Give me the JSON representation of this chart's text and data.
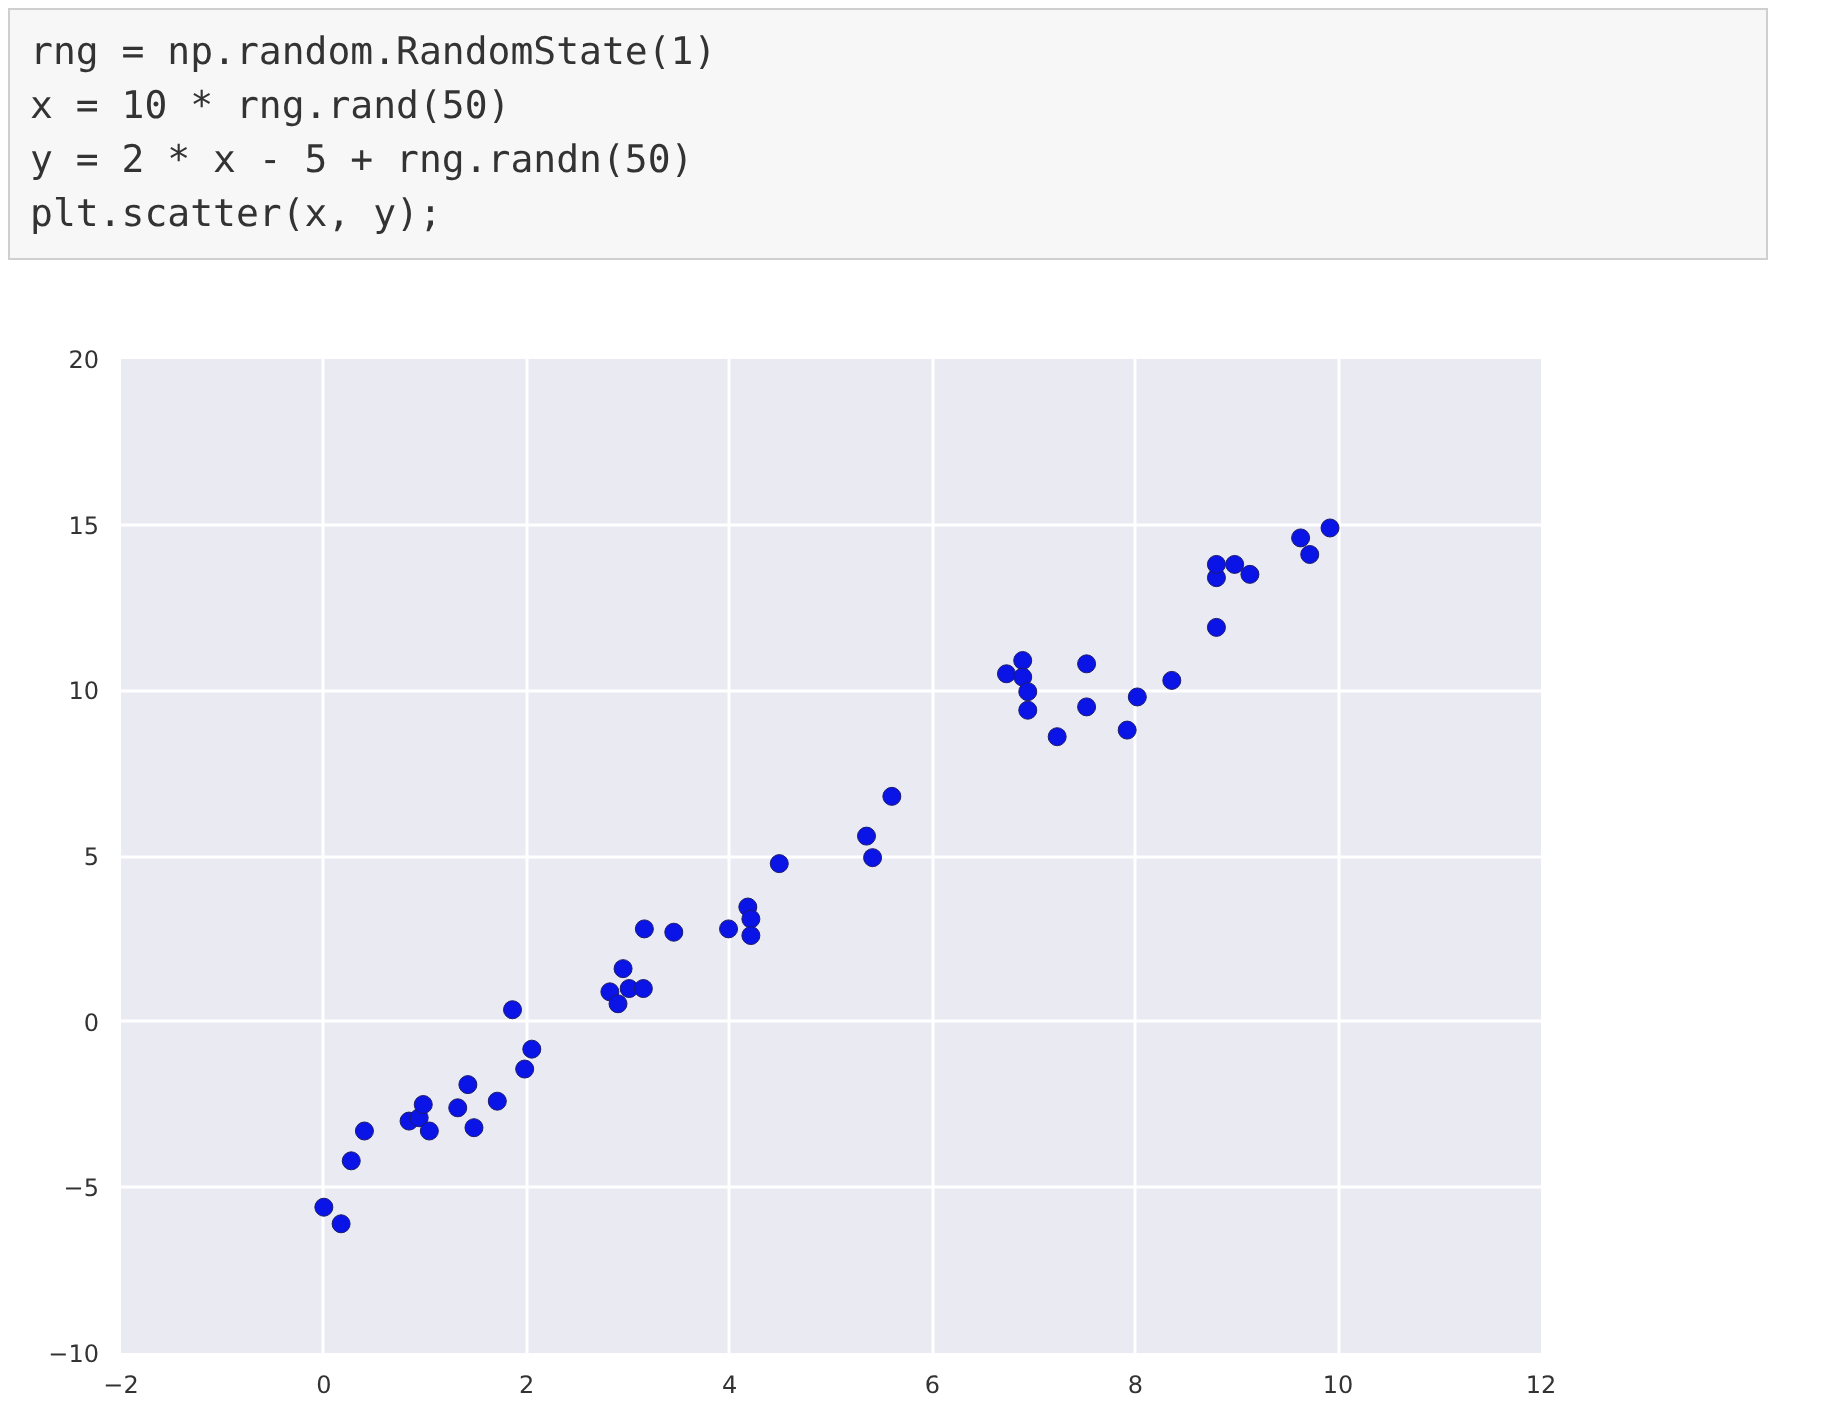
{
  "chart_data": {
    "type": "scatter",
    "marker": "circle",
    "grid": true,
    "annotations": [
      "rng = np.random.RandomState(1)",
      "x = 10 * rng.rand(50)",
      "y = 2 * x - 5 + rng.randn(50)",
      "plt.scatter(x, y);"
    ],
    "xlim": [
      -2,
      12
    ],
    "xticks": [
      {
        "value": -2,
        "label": "−2"
      },
      0,
      2,
      4,
      6,
      8,
      10,
      12
    ],
    "ylim": [
      -10,
      20
    ],
    "yticks": [
      {
        "value": -10,
        "label": "−10"
      },
      {
        "value": -5,
        "label": "−5"
      },
      0,
      5,
      10,
      15,
      20
    ],
    "series": [
      {
        "color": "#0a14e6",
        "x": [
          0.0,
          0.17,
          0.27,
          0.4,
          0.84,
          0.94,
          0.98,
          1.04,
          1.32,
          1.42,
          1.48,
          1.71,
          1.86,
          1.98,
          2.05,
          2.82,
          2.9,
          2.95,
          3.01,
          3.15,
          3.16,
          3.45,
          3.99,
          4.18,
          4.21,
          4.21,
          4.49,
          5.35,
          5.41,
          5.6,
          6.73,
          6.89,
          6.89,
          6.94,
          6.94,
          7.23,
          7.52,
          7.52,
          7.92,
          8.02,
          8.36,
          8.8,
          8.8,
          8.8,
          8.98,
          9.13,
          9.63,
          9.72,
          9.92
        ],
        "values": [
          -5.6,
          -6.1,
          -4.2,
          -3.3,
          -3.0,
          -2.9,
          -2.5,
          -3.3,
          -2.6,
          -1.9,
          -3.2,
          -2.4,
          0.36,
          -1.43,
          -0.83,
          0.9,
          0.54,
          1.6,
          1.0,
          1.0,
          2.8,
          2.7,
          2.8,
          3.46,
          3.1,
          2.6,
          4.77,
          5.6,
          4.95,
          6.8,
          10.5,
          10.9,
          10.4,
          9.96,
          9.4,
          8.6,
          10.8,
          9.5,
          8.8,
          9.8,
          10.3,
          11.9,
          13.4,
          13.8,
          13.8,
          13.5,
          14.6,
          14.1,
          14.9
        ]
      }
    ]
  }
}
